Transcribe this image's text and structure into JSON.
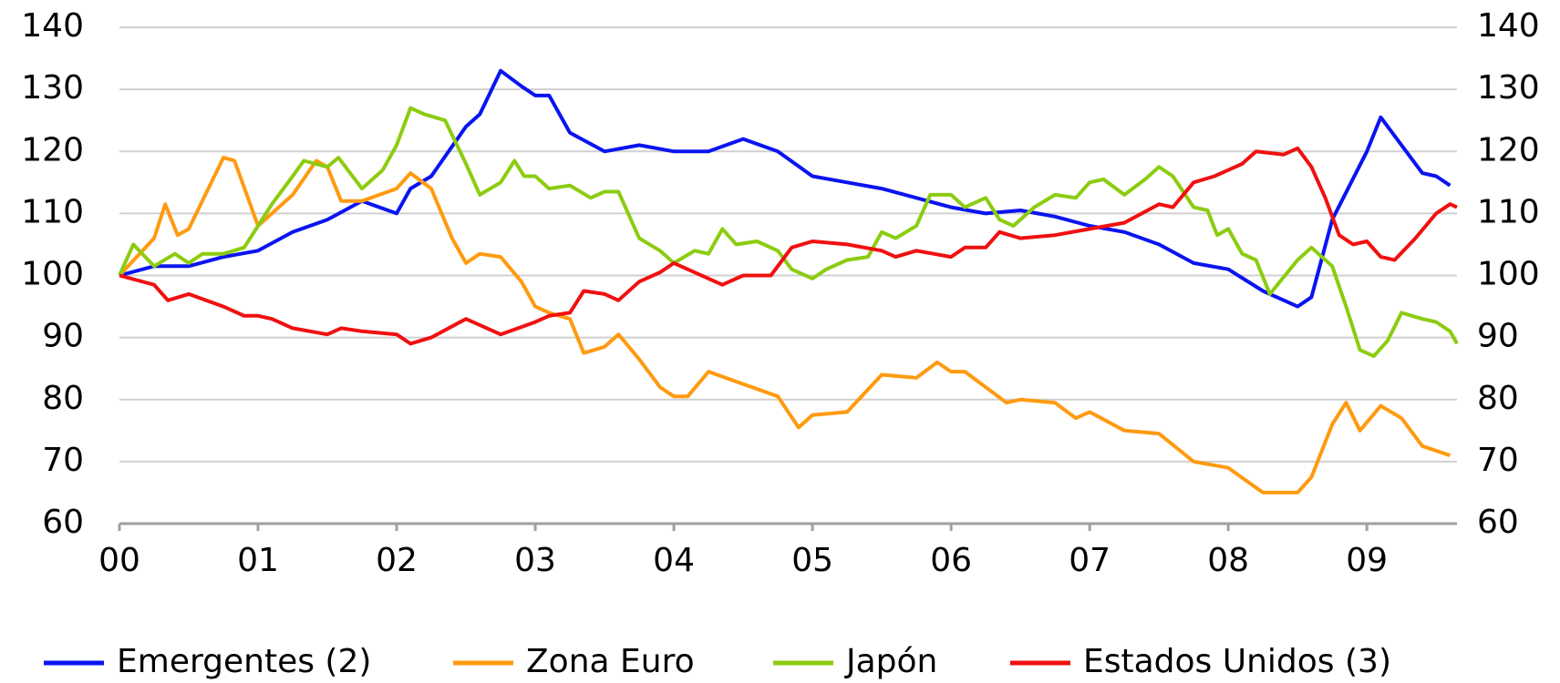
{
  "chart_data": {
    "type": "line",
    "xlim": [
      2000,
      2009.65
    ],
    "xticks": [
      {
        "value": 2000,
        "label": "00"
      },
      {
        "value": 2001,
        "label": "01"
      },
      {
        "value": 2002,
        "label": "02"
      },
      {
        "value": 2003,
        "label": "03"
      },
      {
        "value": 2004,
        "label": "04"
      },
      {
        "value": 2005,
        "label": "05"
      },
      {
        "value": 2006,
        "label": "06"
      },
      {
        "value": 2007,
        "label": "07"
      },
      {
        "value": 2008,
        "label": "08"
      },
      {
        "value": 2009,
        "label": "09"
      }
    ],
    "ylim": [
      60,
      140
    ],
    "yticks": [
      60,
      70,
      80,
      90,
      100,
      110,
      120,
      130,
      140
    ],
    "y2lim": [
      60,
      140
    ],
    "y2ticks": [
      60,
      70,
      80,
      90,
      100,
      110,
      120,
      130,
      140
    ],
    "grid": true,
    "series": [
      {
        "name": "Emergentes (2)",
        "color": "#0a14f0",
        "x": [
          2000,
          2000.25,
          2000.5,
          2000.75,
          2001,
          2001.25,
          2001.5,
          2001.75,
          2002,
          2002.1,
          2002.25,
          2002.5,
          2002.6,
          2002.75,
          2002.9,
          2003,
          2003.1,
          2003.25,
          2003.5,
          2003.75,
          2004,
          2004.25,
          2004.5,
          2004.75,
          2005,
          2005.25,
          2005.5,
          2005.75,
          2006,
          2006.25,
          2006.5,
          2006.75,
          2007,
          2007.25,
          2007.5,
          2007.75,
          2008,
          2008.25,
          2008.5,
          2008.6,
          2008.75,
          2009,
          2009.1,
          2009.25,
          2009.4,
          2009.5,
          2009.6
        ],
        "values": [
          100,
          101.5,
          101.5,
          103,
          104,
          107,
          109,
          112,
          110,
          114,
          116,
          124,
          126,
          133,
          130.5,
          129,
          129,
          123,
          120,
          121,
          120,
          120,
          122,
          120,
          116,
          115,
          114,
          112.5,
          111,
          110,
          110.5,
          109.5,
          108,
          107,
          105,
          102,
          101,
          97.5,
          95,
          96.5,
          109,
          120,
          125.5,
          121,
          116.5,
          116,
          114.5
        ]
      },
      {
        "name": "Zona Euro",
        "color": "#ff9a10",
        "x": [
          2000,
          2000.25,
          2000.33,
          2000.42,
          2000.5,
          2000.75,
          2000.83,
          2001,
          2001.25,
          2001.42,
          2001.5,
          2001.6,
          2001.75,
          2002,
          2002.1,
          2002.25,
          2002.4,
          2002.5,
          2002.6,
          2002.75,
          2002.9,
          2003,
          2003.1,
          2003.25,
          2003.35,
          2003.5,
          2003.6,
          2003.75,
          2003.9,
          2004,
          2004.1,
          2004.25,
          2004.5,
          2004.75,
          2004.9,
          2005,
          2005.25,
          2005.5,
          2005.75,
          2005.9,
          2006,
          2006.1,
          2006.25,
          2006.4,
          2006.5,
          2006.75,
          2006.9,
          2007,
          2007.25,
          2007.5,
          2007.75,
          2008,
          2008.25,
          2008.5,
          2008.6,
          2008.75,
          2008.85,
          2008.95,
          2009.1,
          2009.25,
          2009.4,
          2009.6
        ],
        "values": [
          100,
          106,
          111.5,
          106.5,
          107.5,
          119,
          118.5,
          108,
          113,
          118.5,
          117.5,
          112,
          112,
          114,
          116.5,
          114,
          106,
          102,
          103.5,
          103,
          99,
          95,
          94,
          93,
          87.5,
          88.5,
          90.5,
          86.5,
          82,
          80.5,
          80.5,
          84.5,
          82.5,
          80.5,
          75.5,
          77.5,
          78,
          84,
          83.5,
          86,
          84.5,
          84.5,
          82,
          79.5,
          80,
          79.5,
          77,
          78,
          75,
          74.5,
          70,
          69,
          65,
          65,
          67.5,
          76,
          79.5,
          75,
          79,
          77,
          72.5,
          71
        ]
      },
      {
        "name": "Japón",
        "color": "#8ccc10",
        "x": [
          2000,
          2000.1,
          2000.25,
          2000.4,
          2000.5,
          2000.6,
          2000.75,
          2000.9,
          2001,
          2001.1,
          2001.25,
          2001.33,
          2001.5,
          2001.58,
          2001.75,
          2001.9,
          2002,
          2002.1,
          2002.2,
          2002.35,
          2002.5,
          2002.6,
          2002.75,
          2002.85,
          2002.92,
          2003,
          2003.1,
          2003.25,
          2003.4,
          2003.5,
          2003.6,
          2003.75,
          2003.9,
          2004,
          2004.15,
          2004.25,
          2004.35,
          2004.45,
          2004.6,
          2004.75,
          2004.85,
          2005,
          2005.1,
          2005.25,
          2005.4,
          2005.5,
          2005.6,
          2005.75,
          2005.85,
          2006,
          2006.1,
          2006.25,
          2006.35,
          2006.45,
          2006.6,
          2006.75,
          2006.9,
          2007,
          2007.1,
          2007.25,
          2007.4,
          2007.5,
          2007.6,
          2007.75,
          2007.85,
          2007.92,
          2008,
          2008.1,
          2008.2,
          2008.3,
          2008.5,
          2008.6,
          2008.75,
          2008.85,
          2008.95,
          2009.05,
          2009.15,
          2009.25,
          2009.4,
          2009.5,
          2009.6,
          2009.65
        ],
        "values": [
          100,
          105,
          101.5,
          103.5,
          102,
          103.5,
          103.5,
          104.5,
          108,
          111.5,
          116,
          118.5,
          117.5,
          119,
          114,
          117,
          121,
          127,
          126,
          125,
          118,
          113,
          115,
          118.5,
          116,
          116,
          114,
          114.5,
          112.5,
          113.5,
          113.5,
          106,
          104,
          102,
          104,
          103.5,
          107.5,
          105,
          105.5,
          104,
          101,
          99.5,
          101,
          102.5,
          103,
          107,
          106,
          108,
          113,
          113,
          111,
          112.5,
          109,
          108,
          111,
          113,
          112.5,
          115,
          115.5,
          113,
          115.5,
          117.5,
          116,
          111,
          110.5,
          106.5,
          107.5,
          103.5,
          102.5,
          97,
          102.5,
          104.5,
          101.5,
          95,
          88,
          87,
          89.5,
          94,
          93,
          92.5,
          91,
          89
        ]
      },
      {
        "name": "Estados Unidos (3)",
        "color": "#f01010",
        "x": [
          2000,
          2000.25,
          2000.35,
          2000.5,
          2000.75,
          2000.9,
          2001,
          2001.1,
          2001.25,
          2001.5,
          2001.6,
          2001.75,
          2002,
          2002.1,
          2002.25,
          2002.5,
          2002.75,
          2003,
          2003.1,
          2003.25,
          2003.35,
          2003.5,
          2003.6,
          2003.75,
          2003.9,
          2004,
          2004.25,
          2004.35,
          2004.5,
          2004.7,
          2004.85,
          2005,
          2005.25,
          2005.5,
          2005.6,
          2005.75,
          2006,
          2006.1,
          2006.25,
          2006.35,
          2006.5,
          2006.75,
          2007,
          2007.25,
          2007.5,
          2007.6,
          2007.75,
          2007.9,
          2008,
          2008.1,
          2008.2,
          2008.4,
          2008.5,
          2008.6,
          2008.7,
          2008.8,
          2008.9,
          2009,
          2009.1,
          2009.2,
          2009.35,
          2009.5,
          2009.6,
          2009.65
        ],
        "values": [
          100,
          98.5,
          96,
          97,
          95,
          93.5,
          93.5,
          93,
          91.5,
          90.5,
          91.5,
          91,
          90.5,
          89,
          90,
          93,
          90.5,
          92.5,
          93.5,
          94,
          97.5,
          97,
          96,
          99,
          100.5,
          102,
          99.5,
          98.5,
          100,
          100,
          104.5,
          105.5,
          105,
          104,
          103,
          104,
          103,
          104.5,
          104.5,
          107,
          106,
          106.5,
          107.5,
          108.5,
          111.5,
          111,
          115,
          116,
          117,
          118,
          120,
          119.5,
          120.5,
          117.5,
          112.5,
          106.5,
          105,
          105.5,
          103,
          102.5,
          106,
          110,
          111.5,
          111
        ]
      }
    ]
  }
}
